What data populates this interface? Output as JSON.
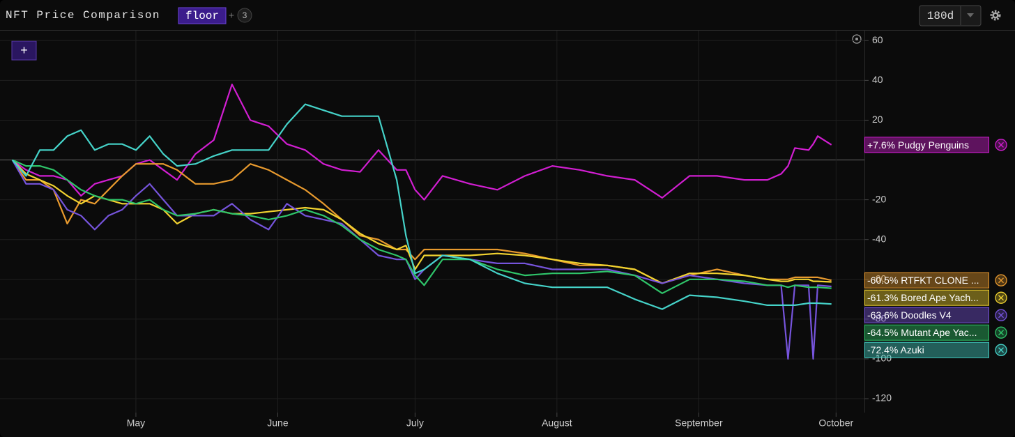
{
  "toolbar": {
    "title": "NFT Price Comparison",
    "metric": "floor",
    "add_metric": "+",
    "metric_count": 3,
    "range": "180d",
    "add_button": "+"
  },
  "chart_data": {
    "type": "line",
    "x": [
      0,
      3,
      6,
      9,
      12,
      15,
      18,
      21,
      24,
      27,
      30,
      33,
      36,
      40,
      44,
      48,
      52,
      56,
      60,
      64,
      68,
      72,
      76,
      80,
      84,
      86,
      88,
      90,
      94,
      100,
      106,
      112,
      118,
      124,
      130,
      136,
      142,
      148,
      154,
      160,
      165,
      168,
      169.5,
      171,
      174,
      175,
      176,
      179
    ],
    "xlim": [
      -2.7,
      186.2
    ],
    "xticks": [
      {
        "value": 27,
        "label": "May"
      },
      {
        "value": 58,
        "label": "June"
      },
      {
        "value": 88,
        "label": "July"
      },
      {
        "value": 119,
        "label": "August"
      },
      {
        "value": 150,
        "label": "September"
      },
      {
        "value": 180,
        "label": "October"
      }
    ],
    "ylim": [
      -127,
      65
    ],
    "yticks": [
      60,
      40,
      20,
      -20,
      -40,
      -60,
      -80,
      -100,
      -120
    ],
    "grid": true,
    "series": [
      {
        "name": "Pudgy Penguins",
        "change_label": "+7.6%",
        "color": "#d21ed2",
        "values": [
          0,
          -5,
          -8,
          -8,
          -10,
          -18,
          -12,
          -10,
          -8,
          -2,
          0,
          -5,
          -10,
          3,
          10,
          38,
          20,
          17,
          8,
          5,
          -2,
          -5,
          -6,
          5,
          -5,
          -5,
          -15,
          -20,
          -8,
          -12,
          -15,
          -8,
          -3,
          -5,
          -8,
          -10,
          -19,
          -8,
          -8,
          -10,
          -10,
          -7,
          -3,
          6,
          5,
          8,
          12,
          7.6
        ]
      },
      {
        "name": "RTFKT CLONE ...",
        "change_label": "-60.5%",
        "color": "#e89a2e",
        "values": [
          0,
          -10,
          -10,
          -15,
          -32,
          -20,
          -22,
          -15,
          -8,
          -2,
          -2,
          -2,
          -5,
          -12,
          -12,
          -10,
          -2,
          -5,
          -10,
          -15,
          -22,
          -30,
          -38,
          -40,
          -45,
          -45,
          -50,
          -45,
          -45,
          -45,
          -45,
          -47,
          -50,
          -53,
          -53,
          -55,
          -62,
          -58,
          -55,
          -58,
          -60,
          -60,
          -60,
          -59,
          -59,
          -59,
          -59,
          -60.5
        ]
      },
      {
        "name": "Bored Ape Yach...",
        "change_label": "-61.3%",
        "color": "#f2d330",
        "values": [
          0,
          -7,
          -10,
          -13,
          -18,
          -22,
          -18,
          -20,
          -22,
          -22,
          -22,
          -25,
          -32,
          -27,
          -25,
          -27,
          -27,
          -26,
          -25,
          -24,
          -25,
          -30,
          -37,
          -42,
          -45,
          -43,
          -55,
          -48,
          -48,
          -48,
          -47,
          -48,
          -50,
          -52,
          -53,
          -55,
          -62,
          -57,
          -57,
          -58,
          -60,
          -61,
          -61,
          -60,
          -60,
          -61,
          -61,
          -61.3
        ]
      },
      {
        "name": "Doodles V4",
        "change_label": "-63.6%",
        "color": "#7654dc",
        "values": [
          0,
          -12,
          -12,
          -15,
          -25,
          -28,
          -35,
          -28,
          -25,
          -18,
          -12,
          -20,
          -28,
          -28,
          -28,
          -22,
          -30,
          -35,
          -22,
          -28,
          -30,
          -32,
          -40,
          -48,
          -50,
          -50,
          -60,
          -55,
          -48,
          -50,
          -52,
          -52,
          -55,
          -55,
          -55,
          -58,
          -62,
          -58,
          -60,
          -62,
          -63,
          -63,
          -100,
          -63,
          -63,
          -100,
          -63,
          -63.6
        ]
      },
      {
        "name": "Mutant Ape Yac...",
        "change_label": "-64.5%",
        "color": "#2fc56a",
        "values": [
          0,
          -3,
          -3,
          -5,
          -10,
          -15,
          -18,
          -20,
          -20,
          -22,
          -20,
          -25,
          -28,
          -27,
          -25,
          -27,
          -28,
          -30,
          -28,
          -25,
          -28,
          -33,
          -40,
          -45,
          -48,
          -50,
          -58,
          -63,
          -50,
          -50,
          -55,
          -58,
          -57,
          -57,
          -56,
          -58,
          -67,
          -60,
          -60,
          -61,
          -63,
          -63,
          -64,
          -63,
          -64,
          -64,
          -64,
          -64.5
        ]
      },
      {
        "name": "Azuki",
        "change_label": "-72.4%",
        "color": "#45d3c9",
        "values": [
          0,
          -8,
          5,
          5,
          12,
          15,
          5,
          8,
          8,
          5,
          12,
          3,
          -3,
          -2,
          2,
          5,
          5,
          5,
          18,
          28,
          25,
          22,
          22,
          22,
          -10,
          -38,
          -57,
          -55,
          -48,
          -50,
          -57,
          -62,
          -64,
          -64,
          -64,
          -70,
          -75,
          -68,
          -69,
          -71,
          -73,
          -73,
          -73,
          -73,
          -72,
          -72,
          -72,
          -72.4
        ]
      }
    ]
  }
}
